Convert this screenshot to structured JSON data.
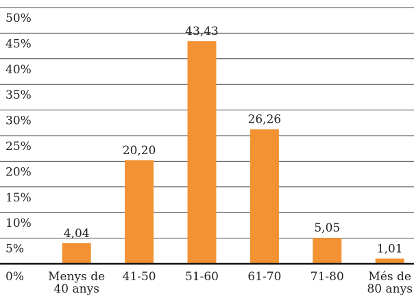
{
  "chart_data": {
    "type": "bar",
    "categories": [
      "Menys de 40 anys",
      "41-50",
      "51-60",
      "61-70",
      "71-80",
      "Més de 80 anys"
    ],
    "category_lines": [
      [
        "Menys de",
        "40 anys"
      ],
      [
        "41-50"
      ],
      [
        "51-60"
      ],
      [
        "61-70"
      ],
      [
        "71-80"
      ],
      [
        "Més de",
        "80 anys"
      ]
    ],
    "values": [
      4.04,
      20.2,
      43.43,
      26.26,
      5.05,
      1.01
    ],
    "value_labels": [
      "4,04",
      "20,20",
      "43,43",
      "26,26",
      "5,05",
      "1,01"
    ],
    "y_ticks": [
      "0%",
      "5%",
      "10%",
      "15%",
      "20%",
      "25%",
      "30%",
      "35%",
      "40%",
      "45%",
      "50%"
    ],
    "ylim": [
      0,
      50
    ],
    "grid": true,
    "legend": "none",
    "title": "",
    "xlabel": "",
    "ylabel": "",
    "colors": {
      "bar": "#F39233",
      "grid": "#444444",
      "axis": "#111111",
      "text": "#222222"
    }
  }
}
